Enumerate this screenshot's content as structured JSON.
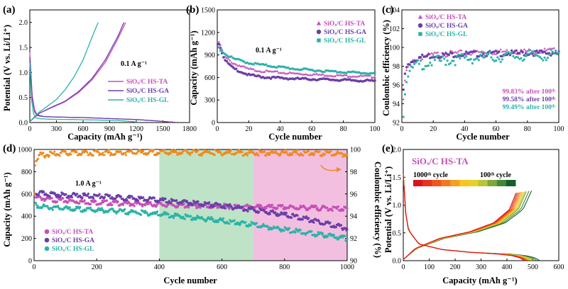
{
  "panels": {
    "a": "(a)",
    "b": "(b)",
    "c": "(c)",
    "d": "(d)",
    "e": "(e)"
  },
  "colors": {
    "TA": "#c84fb8",
    "GA": "#6a3fa8",
    "GL": "#2bb3a8",
    "green_band": "#bfe3c6",
    "pink_band": "#f2bfe0",
    "ce_orange": "#f08a1c"
  },
  "chart_data": [
    {
      "panel": "a",
      "type": "line",
      "xlabel": "Capacity (mAh g⁻¹)",
      "ylabel": "Potential (V vs. Li/Li⁺)",
      "xlim": [
        0,
        1800
      ],
      "ylim": [
        0,
        2.25
      ],
      "xticks": [
        0,
        300,
        600,
        900,
        1200,
        1500,
        1800
      ],
      "yticks": [
        0.0,
        0.5,
        1.0,
        1.5,
        2.0
      ],
      "annotation": "0.1 A g⁻¹",
      "legend_position": "center-right",
      "series": [
        {
          "name": "SiOₓ/C HS-TA",
          "key": "TA",
          "charge": {
            "x": [
              0,
              100,
              250,
              400,
              550,
              700,
              850,
              1000,
              1080
            ],
            "y": [
              0.02,
              0.18,
              0.3,
              0.42,
              0.6,
              0.85,
              1.2,
              1.7,
              2.0
            ]
          },
          "discharge": {
            "x": [
              0,
              15,
              40,
              80,
              150,
              300,
              600,
              900,
              1200,
              1450,
              1600
            ],
            "y": [
              1.4,
              0.75,
              0.3,
              0.16,
              0.12,
              0.11,
              0.1,
              0.08,
              0.06,
              0.03,
              0.005
            ]
          }
        },
        {
          "name": "SiOₓ/C HS-GA",
          "key": "GA",
          "charge": {
            "x": [
              0,
              100,
              250,
              400,
              550,
              700,
              850,
              1000,
              1060
            ],
            "y": [
              0.02,
              0.18,
              0.31,
              0.43,
              0.62,
              0.88,
              1.25,
              1.75,
              2.0
            ]
          },
          "discharge": {
            "x": [
              0,
              15,
              40,
              80,
              150,
              300,
              600,
              900,
              1200,
              1450,
              1640
            ],
            "y": [
              1.3,
              0.7,
              0.26,
              0.14,
              0.12,
              0.11,
              0.1,
              0.08,
              0.06,
              0.03,
              0.005
            ]
          }
        },
        {
          "name": "SiOₓ/C HS-GL",
          "key": "GL",
          "charge": {
            "x": [
              0,
              100,
              200,
              300,
              400,
              500,
              600,
              700,
              770
            ],
            "y": [
              0.02,
              0.2,
              0.33,
              0.46,
              0.66,
              0.92,
              1.25,
              1.7,
              2.0
            ]
          },
          "discharge": {
            "x": [
              0,
              10,
              30,
              60,
              120,
              250,
              500,
              750,
              1000,
              1150,
              1230
            ],
            "y": [
              1.2,
              0.65,
              0.24,
              0.1,
              0.075,
              0.065,
              0.06,
              0.05,
              0.04,
              0.02,
              0.005
            ]
          }
        }
      ]
    },
    {
      "panel": "b",
      "type": "scatter",
      "xlabel": "Cycle number",
      "ylabel": "Capacity (mAh g⁻¹)",
      "xlim": [
        0,
        100
      ],
      "ylim": [
        0,
        1500
      ],
      "xticks": [
        0,
        20,
        40,
        60,
        80,
        100
      ],
      "yticks": [
        0,
        300,
        600,
        900,
        1200,
        1500
      ],
      "annotation": "0.1 A g⁻¹",
      "legend_position": "top-right",
      "series": [
        {
          "name": "SiOₓ/C HS-TA",
          "key": "TA",
          "marker": "triangle",
          "x": [
            1,
            5,
            10,
            20,
            30,
            50,
            70,
            100
          ],
          "y": [
            1080,
            880,
            800,
            720,
            690,
            660,
            640,
            620
          ]
        },
        {
          "name": "SiOₓ/C HS-GA",
          "key": "GA",
          "marker": "circle",
          "x": [
            1,
            5,
            10,
            20,
            30,
            50,
            70,
            100
          ],
          "y": [
            1060,
            830,
            730,
            640,
            610,
            590,
            580,
            560
          ]
        },
        {
          "name": "SiOₓ/C HS-GL",
          "key": "GL",
          "marker": "square",
          "x": [
            1,
            5,
            10,
            20,
            30,
            50,
            70,
            100
          ],
          "y": [
            1000,
            920,
            860,
            800,
            770,
            720,
            690,
            660
          ]
        }
      ]
    },
    {
      "panel": "c",
      "type": "scatter",
      "xlabel": "Cycle number",
      "ylabel": "Coulombic efficiency (%)",
      "xlim": [
        0,
        100
      ],
      "ylim": [
        92,
        104
      ],
      "xticks": [
        0,
        20,
        40,
        60,
        80,
        100
      ],
      "yticks": [
        92,
        94,
        96,
        98,
        100,
        102,
        104
      ],
      "legend_position": "top-left",
      "notes": [
        {
          "key": "TA",
          "text": "99.83% after 100ᵗʰ"
        },
        {
          "key": "GA",
          "text": "99.58% after 100ᵗʰ"
        },
        {
          "key": "GL",
          "text": "99.49% after 100ᵗʰ"
        }
      ],
      "series": [
        {
          "name": "SiOₓ/C HS-TA",
          "key": "TA",
          "marker": "triangle",
          "x": [
            1,
            2,
            3,
            5,
            8,
            12,
            20,
            40,
            60,
            80,
            100
          ],
          "y": [
            94.5,
            96.5,
            97.6,
            98.3,
            98.8,
            99.1,
            99.4,
            99.6,
            99.7,
            99.75,
            99.83
          ]
        },
        {
          "name": "SiOₓ/C HS-GA",
          "key": "GA",
          "marker": "circle",
          "x": [
            1,
            2,
            3,
            5,
            8,
            12,
            20,
            40,
            60,
            80,
            100
          ],
          "y": [
            95.5,
            97.2,
            97.9,
            98.5,
            98.9,
            99.1,
            99.3,
            99.45,
            99.5,
            99.55,
            99.58
          ]
        },
        {
          "name": "SiOₓ/C HS-GL",
          "key": "GL",
          "marker": "square",
          "x": [
            1,
            2,
            3,
            5,
            8,
            12,
            20,
            40,
            60,
            80,
            100
          ],
          "y": [
            92.6,
            95.0,
            96.3,
            97.5,
            98.2,
            98.5,
            98.8,
            99.1,
            99.3,
            99.4,
            99.49
          ]
        }
      ]
    },
    {
      "panel": "d",
      "type": "scatter",
      "xlabel": "Cycle number",
      "ylabel": "Capacity (mAh g⁻¹)",
      "ylabel2": "Coulombic efficiency (%)",
      "xlim": [
        0,
        1000
      ],
      "ylim": [
        0,
        1000
      ],
      "ylim2": [
        90,
        100
      ],
      "xticks": [
        0,
        200,
        400,
        600,
        800,
        1000
      ],
      "yticks": [
        0,
        200,
        400,
        600,
        800,
        1000
      ],
      "yticks2": [
        90,
        92,
        94,
        96,
        98,
        100
      ],
      "bands": [
        [
          400,
          700
        ],
        [
          700,
          1000
        ]
      ],
      "annotation": "1.0 A g⁻¹",
      "legend_position": "bottom-left",
      "series": [
        {
          "name": "SiOₓ/C HS-TA",
          "key": "TA",
          "x": [
            5,
            50,
            100,
            200,
            300,
            400,
            500,
            600,
            700,
            800,
            900,
            1000
          ],
          "y": [
            580,
            560,
            550,
            535,
            525,
            515,
            505,
            500,
            495,
            490,
            485,
            475
          ]
        },
        {
          "name": "SiOₓ/C HS-GA",
          "key": "GA",
          "x": [
            5,
            50,
            100,
            200,
            300,
            400,
            500,
            600,
            700,
            800,
            900,
            1000
          ],
          "y": [
            620,
            610,
            600,
            590,
            575,
            555,
            530,
            505,
            470,
            425,
            370,
            300
          ]
        },
        {
          "name": "SiOₓ/C HS-GL",
          "key": "GL",
          "x": [
            5,
            50,
            100,
            200,
            300,
            400,
            500,
            600,
            700,
            800,
            900,
            1000
          ],
          "y": [
            510,
            490,
            480,
            465,
            450,
            430,
            400,
            370,
            335,
            290,
            250,
            210
          ]
        }
      ],
      "ce_series": {
        "x": [
          1,
          3,
          8,
          20,
          100,
          300,
          500,
          700,
          900,
          1000
        ],
        "y": [
          96.0,
          98.5,
          99.3,
          99.6,
          99.8,
          99.85,
          99.85,
          99.8,
          99.8,
          99.7
        ]
      }
    },
    {
      "panel": "e",
      "type": "line",
      "xlabel": "Capacity (mAh g⁻¹)",
      "ylabel": "Potential (V vs. Li/Li⁺)",
      "xlim": [
        0,
        600
      ],
      "ylim": [
        0,
        2.0
      ],
      "xticks": [
        0,
        100,
        200,
        300,
        400,
        500,
        600
      ],
      "yticks": [
        0.0,
        0.5,
        1.0,
        1.5,
        2.0
      ],
      "title": "SiOₓ/C HS-TA",
      "colorbar_labels": [
        "1000ᵗʰ cycle",
        "100ᵗʰ cycle"
      ],
      "colorbar_colors": [
        "#d8141c",
        "#e8321a",
        "#f0541c",
        "#f27820",
        "#f5a021",
        "#f7c520",
        "#e6d02a",
        "#b8c43a",
        "#7ea83c",
        "#3f8a38",
        "#146028"
      ],
      "cycles": [
        {
          "cap_end": 525,
          "color": "#146028"
        },
        {
          "cap_end": 515,
          "color": "#3f8a38"
        },
        {
          "cap_end": 505,
          "color": "#7ea83c"
        },
        {
          "cap_end": 500,
          "color": "#b8c43a"
        },
        {
          "cap_end": 495,
          "color": "#e6d02a"
        },
        {
          "cap_end": 490,
          "color": "#f7c520"
        },
        {
          "cap_end": 485,
          "color": "#f5a021"
        },
        {
          "cap_end": 480,
          "color": "#f27820"
        },
        {
          "cap_end": 475,
          "color": "#f0541c"
        },
        {
          "cap_end": 470,
          "color": "#e8321a"
        },
        {
          "cap_end": 465,
          "color": "#d8141c"
        }
      ]
    }
  ]
}
